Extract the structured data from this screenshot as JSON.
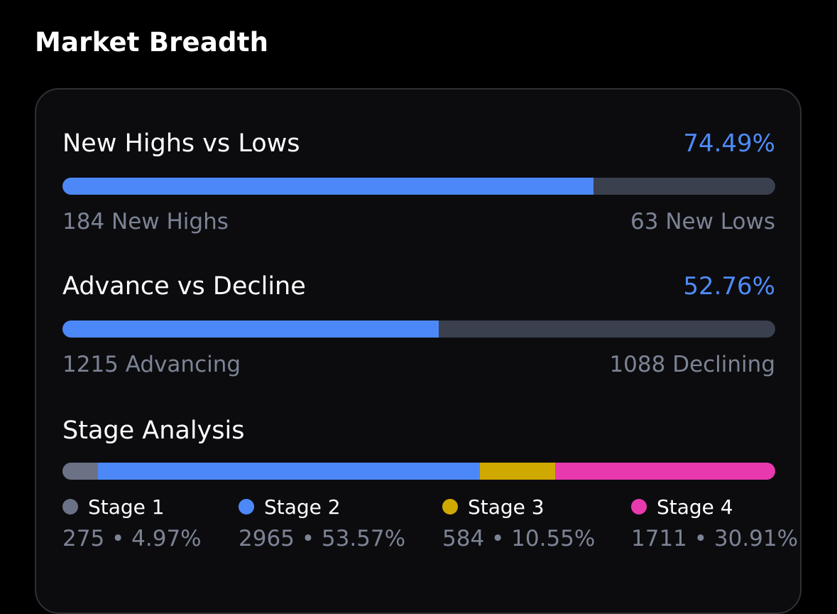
{
  "page": {
    "title": "Market Breadth"
  },
  "new_highs_lows": {
    "label": "New Highs vs Lows",
    "percent_text": "74.49%",
    "percent": 74.49,
    "left_text": "184 New Highs",
    "right_text": "63 New Lows"
  },
  "advance_decline": {
    "label": "Advance vs Decline",
    "percent_text": "52.76%",
    "percent": 52.76,
    "left_text": "1215 Advancing",
    "right_text": "1088 Declining"
  },
  "stage_analysis": {
    "title": "Stage Analysis",
    "stages": [
      {
        "name": "Stage 1",
        "count": 275,
        "percent": 4.97,
        "value_text": "275 • 4.97%",
        "color": "#6b7285"
      },
      {
        "name": "Stage 2",
        "count": 2965,
        "percent": 53.57,
        "value_text": "2965 • 53.57%",
        "color": "#4d88f8"
      },
      {
        "name": "Stage 3",
        "count": 584,
        "percent": 10.55,
        "value_text": "584 • 10.55%",
        "color": "#cfa800"
      },
      {
        "name": "Stage 4",
        "count": 1711,
        "percent": 30.91,
        "value_text": "1711 • 30.91%",
        "color": "#e83aae"
      }
    ]
  },
  "colors": {
    "accent_blue": "#4f8bf7",
    "track": "#3a404d",
    "muted_text": "#7c8394"
  }
}
